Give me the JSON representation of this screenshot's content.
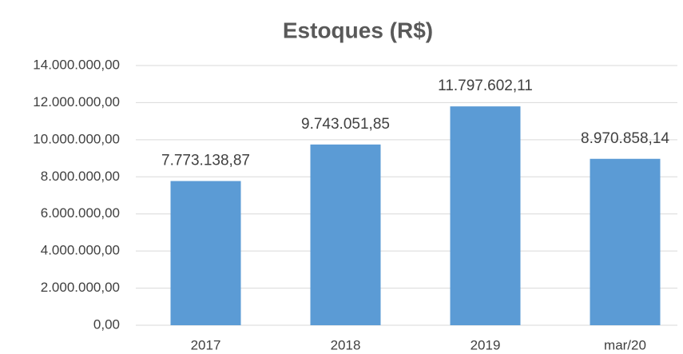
{
  "chart_data": {
    "type": "bar",
    "title": "Estoques (R$)",
    "categories": [
      "2017",
      "2018",
      "2019",
      "mar/20"
    ],
    "values": [
      7773138.87,
      9743051.85,
      11797602.11,
      8970858.14
    ],
    "value_labels": [
      "7.773.138,87",
      "9.743.051,85",
      "11.797.602,11",
      "8.970.858,14"
    ],
    "color": "#5b9bd5",
    "ylim": [
      0,
      14000000
    ],
    "yticks": [
      {
        "value": 0,
        "label": "0,00"
      },
      {
        "value": 2000000,
        "label": "2.000.000,00"
      },
      {
        "value": 4000000,
        "label": "4.000.000,00"
      },
      {
        "value": 6000000,
        "label": "6.000.000,00"
      },
      {
        "value": 8000000,
        "label": "8.000.000,00"
      },
      {
        "value": 10000000,
        "label": "10.000.000,00"
      },
      {
        "value": 12000000,
        "label": "12.000.000,00"
      },
      {
        "value": 14000000,
        "label": "14.000.000,00"
      }
    ],
    "grid": true
  }
}
